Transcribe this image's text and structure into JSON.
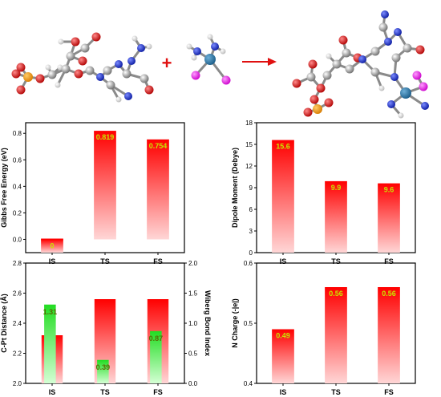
{
  "colors": {
    "red_bar_top": "#ff0000",
    "red_bar_bottom": "#ffd0d0",
    "green_bar_top": "#22dd22",
    "green_bar_bottom": "#ccffcc",
    "label_color": "#c8e600",
    "arrow": "#e01010"
  },
  "scheme": {
    "plus_sign": "+"
  },
  "chart_data": [
    {
      "type": "bar",
      "categories": [
        "IS",
        "TS",
        "FS"
      ],
      "values": [
        0,
        0.819,
        0.754
      ],
      "value_labels": [
        "0",
        "0.819",
        "0.754"
      ],
      "ylabel": "Gibbs Free Energy (eV)",
      "ylim": [
        -0.1,
        0.88
      ],
      "yticks": [
        0.0,
        0.2,
        0.4,
        0.6,
        0.8
      ],
      "ytick_labels": [
        "0.0",
        "0.2",
        "0.4",
        "0.6",
        "0.8"
      ]
    },
    {
      "type": "bar",
      "categories": [
        "IS",
        "TS",
        "FS"
      ],
      "values": [
        15.6,
        9.9,
        9.6
      ],
      "value_labels": [
        "15.6",
        "9.9",
        "9.6"
      ],
      "ylabel": "Dipole Moment (Debye)",
      "ylim": [
        0,
        18
      ],
      "yticks": [
        0,
        3,
        6,
        9,
        12,
        15,
        18
      ],
      "ytick_labels": [
        "0",
        "3",
        "6",
        "9",
        "12",
        "15",
        "18"
      ]
    },
    {
      "type": "bar",
      "categories": [
        "IS",
        "TS",
        "FS"
      ],
      "series": [
        {
          "values": [
            2.32,
            2.56,
            2.56
          ],
          "axis": "left"
        },
        {
          "values": [
            1.31,
            0.39,
            0.87
          ],
          "value_labels": [
            "1.31",
            "0.39",
            "0.87"
          ],
          "axis": "right"
        }
      ],
      "ylabel": "C-Pt Distance (Å)",
      "ylim": [
        2.0,
        2.8
      ],
      "yticks": [
        2.0,
        2.2,
        2.4,
        2.6,
        2.8
      ],
      "ytick_labels": [
        "2.0",
        "2.2",
        "2.4",
        "2.6",
        "2.8"
      ],
      "y2label": "Wiberg Bond Index",
      "y2lim": [
        0,
        2.0
      ],
      "y2ticks": [
        0.0,
        0.5,
        1.0,
        1.5,
        2.0
      ],
      "y2tick_labels": [
        "0.0",
        "0.5",
        "1.0",
        "1.5",
        "2.0"
      ]
    },
    {
      "type": "bar",
      "categories": [
        "IS",
        "TS",
        "FS"
      ],
      "values": [
        0.49,
        0.56,
        0.56
      ],
      "value_labels": [
        "0.49",
        "0.56",
        "0.56"
      ],
      "ylabel": "N Charge (-|e|)",
      "ylim": [
        0.4,
        0.6
      ],
      "yticks": [
        0.4,
        0.5,
        0.6
      ],
      "ytick_labels": [
        "0.4",
        "0.5",
        "0.6"
      ]
    }
  ]
}
